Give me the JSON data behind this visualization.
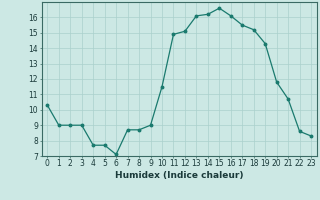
{
  "x": [
    0,
    1,
    2,
    3,
    4,
    5,
    6,
    7,
    8,
    9,
    10,
    11,
    12,
    13,
    14,
    15,
    16,
    17,
    18,
    19,
    20,
    21,
    22,
    23
  ],
  "y": [
    10.3,
    9.0,
    9.0,
    9.0,
    7.7,
    7.7,
    7.1,
    8.7,
    8.7,
    9.0,
    11.5,
    14.9,
    15.1,
    16.1,
    16.2,
    16.6,
    16.1,
    15.5,
    15.2,
    14.3,
    11.8,
    10.7,
    8.6,
    8.3
  ],
  "line_color": "#1a7a6e",
  "marker": "o",
  "marker_size": 1.8,
  "bg_color": "#cce8e4",
  "grid_color": "#aad0cc",
  "xlabel": "Humidex (Indice chaleur)",
  "ylim": [
    7,
    17
  ],
  "xlim": [
    -0.5,
    23.5
  ],
  "yticks": [
    7,
    8,
    9,
    10,
    11,
    12,
    13,
    14,
    15,
    16
  ],
  "xticks": [
    0,
    1,
    2,
    3,
    4,
    5,
    6,
    7,
    8,
    9,
    10,
    11,
    12,
    13,
    14,
    15,
    16,
    17,
    18,
    19,
    20,
    21,
    22,
    23
  ],
  "tick_fontsize": 5.5,
  "label_fontsize": 6.5
}
